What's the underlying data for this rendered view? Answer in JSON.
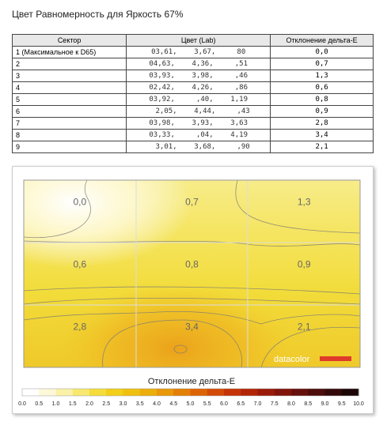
{
  "header": {
    "title": "Цвет Равномерность для Яркость 67%"
  },
  "table": {
    "columns": [
      "Сектор",
      "Цвет (Lab)",
      "Отклонение дельта-E"
    ],
    "rows": [
      [
        "1 (Максимальное к D65)",
        "03,61,    3,67,     80",
        "0,0"
      ],
      [
        "2",
        "04,63,    4,36,     ,51",
        "0,7"
      ],
      [
        "3",
        "03,93,    3,98,     ,46",
        "1,3"
      ],
      [
        "4",
        "02,42,    4,26,     ,86",
        "0,6"
      ],
      [
        "5",
        "03,92,     ,40,    1,19",
        "0,8"
      ],
      [
        "6",
        "  2,05,    4,44,     ,43",
        "0,9"
      ],
      [
        "7",
        "03,98,    3,93,    3,63",
        "2,8"
      ],
      [
        "8",
        "03,33,     ,04,    4,19",
        "3,4"
      ],
      [
        "9",
        "  3,01,    3,68,     ,90",
        "2,1"
      ]
    ]
  },
  "heatmap": {
    "cells": [
      [
        "0,0",
        "0,7",
        "1,3"
      ],
      [
        "0,6",
        "0,8",
        "0,9"
      ],
      [
        "2,8",
        "3,4",
        "2,1"
      ]
    ],
    "logo": "datacolor",
    "legend_title": "Отклонение дельта-E",
    "legend_ticks": [
      "0.0",
      "0.5",
      "1.0",
      "1.5",
      "2.0",
      "2.5",
      "3.0",
      "3.5",
      "4.0",
      "4.5",
      "5.0",
      "5.5",
      "6.0",
      "6.5",
      "7.0",
      "7.5",
      "8.0",
      "8.5",
      "9.0",
      "9.5",
      "10.0"
    ]
  }
}
